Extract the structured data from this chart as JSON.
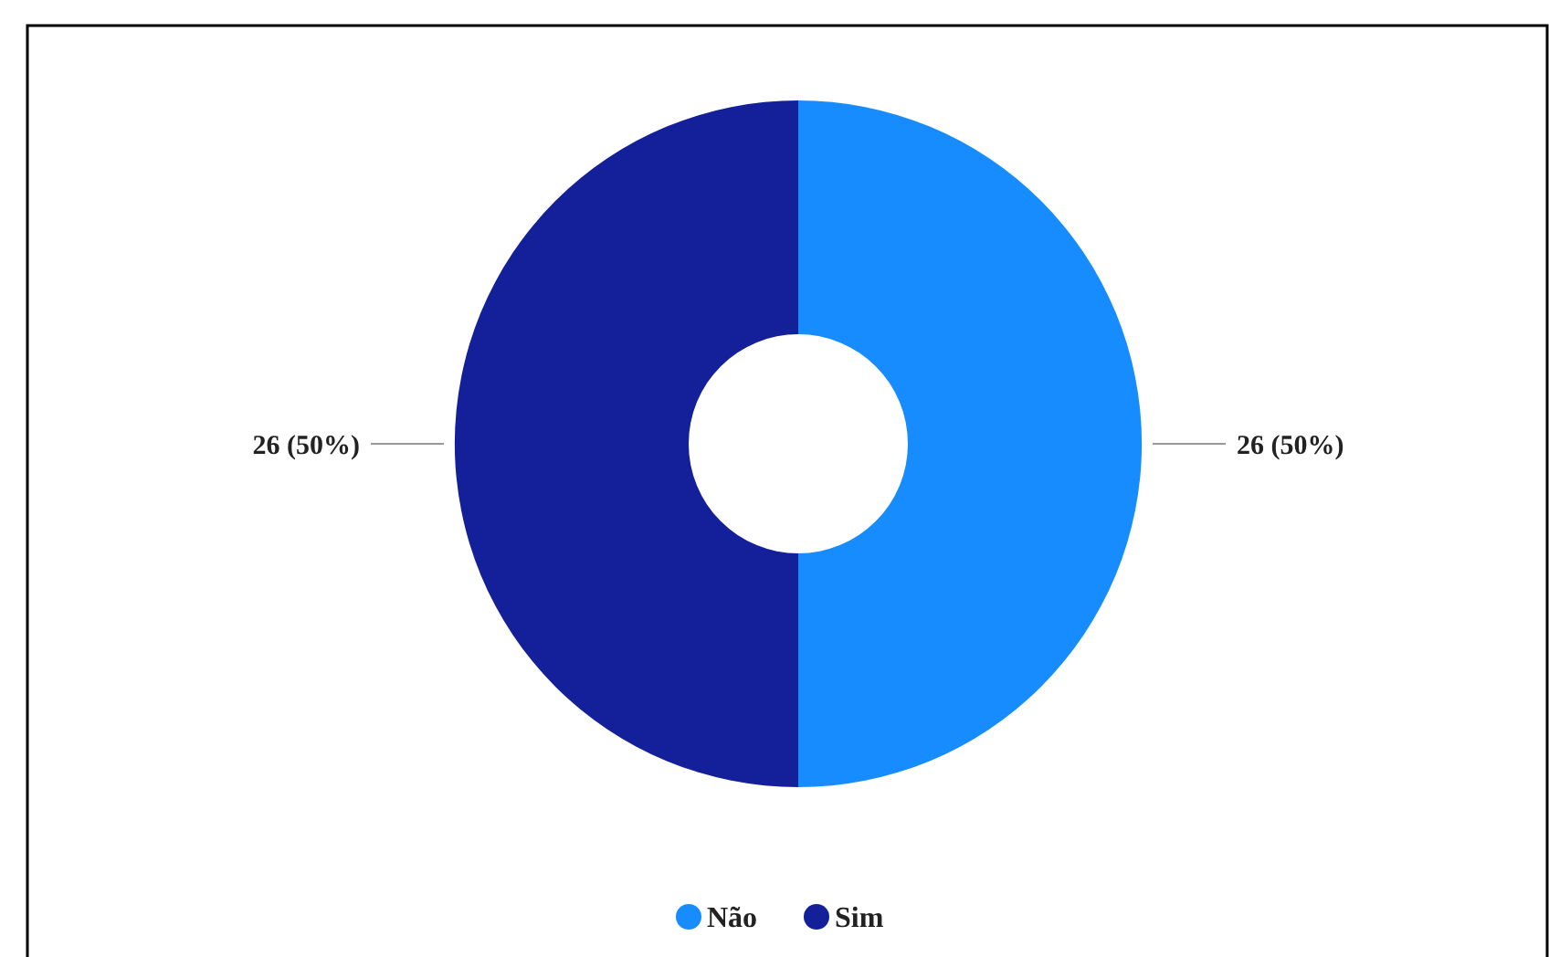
{
  "chart_data": {
    "type": "donut",
    "categories": [
      "Não",
      "Sim"
    ],
    "values": [
      26,
      26
    ],
    "colors": [
      "#168cff",
      "#13209a"
    ],
    "value_labels": [
      "26 (50%)",
      "26 (50%)"
    ],
    "legend": "bottom"
  }
}
